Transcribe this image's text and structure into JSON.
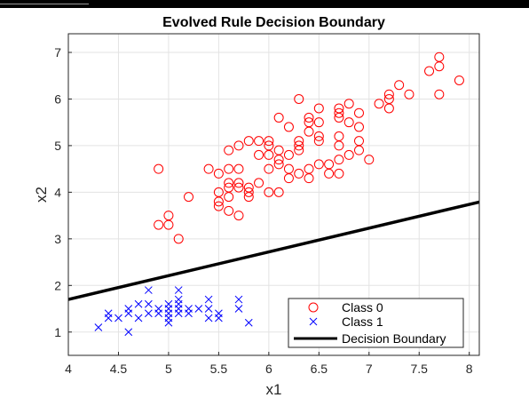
{
  "chart_data": {
    "type": "scatter",
    "title": "Evolved Rule Decision Boundary",
    "xlabel": "x1",
    "ylabel": "x2",
    "xlim": [
      4,
      8.1
    ],
    "ylim": [
      0.5,
      7.4
    ],
    "xticks": [
      "4",
      "4.5",
      "5",
      "5.5",
      "6",
      "6.5",
      "7",
      "7.5",
      "8"
    ],
    "yticks": [
      "1",
      "2",
      "3",
      "4",
      "5",
      "6",
      "7"
    ],
    "grid": true,
    "legend_position": "bottom-right",
    "series": [
      {
        "name": "Class 0",
        "marker": "circle",
        "color": "#ff0000",
        "points": [
          [
            4.9,
            4.5
          ],
          [
            4.9,
            3.3
          ],
          [
            5.0,
            3.5
          ],
          [
            5.0,
            3.3
          ],
          [
            5.1,
            3.0
          ],
          [
            5.2,
            3.9
          ],
          [
            5.4,
            4.5
          ],
          [
            5.5,
            4.4
          ],
          [
            5.5,
            4.0
          ],
          [
            5.5,
            3.8
          ],
          [
            5.5,
            3.7
          ],
          [
            5.6,
            4.9
          ],
          [
            5.6,
            4.5
          ],
          [
            5.6,
            4.2
          ],
          [
            5.6,
            4.1
          ],
          [
            5.6,
            3.9
          ],
          [
            5.6,
            3.6
          ],
          [
            5.7,
            5.0
          ],
          [
            5.7,
            4.5
          ],
          [
            5.7,
            4.2
          ],
          [
            5.7,
            4.1
          ],
          [
            5.7,
            3.5
          ],
          [
            5.8,
            5.1
          ],
          [
            5.8,
            4.1
          ],
          [
            5.8,
            4.0
          ],
          [
            5.8,
            3.9
          ],
          [
            5.9,
            5.1
          ],
          [
            5.9,
            4.8
          ],
          [
            5.9,
            4.2
          ],
          [
            6.0,
            5.1
          ],
          [
            6.0,
            5.0
          ],
          [
            6.0,
            4.8
          ],
          [
            6.0,
            4.5
          ],
          [
            6.0,
            4.0
          ],
          [
            6.1,
            5.6
          ],
          [
            6.1,
            4.9
          ],
          [
            6.1,
            4.7
          ],
          [
            6.1,
            4.6
          ],
          [
            6.1,
            4.0
          ],
          [
            6.2,
            5.4
          ],
          [
            6.2,
            4.8
          ],
          [
            6.2,
            4.5
          ],
          [
            6.2,
            4.3
          ],
          [
            6.3,
            6.0
          ],
          [
            6.3,
            5.1
          ],
          [
            6.3,
            5.0
          ],
          [
            6.3,
            4.9
          ],
          [
            6.3,
            4.4
          ],
          [
            6.4,
            5.6
          ],
          [
            6.4,
            5.5
          ],
          [
            6.4,
            5.3
          ],
          [
            6.4,
            4.5
          ],
          [
            6.4,
            4.3
          ],
          [
            6.5,
            5.8
          ],
          [
            6.5,
            5.5
          ],
          [
            6.5,
            5.2
          ],
          [
            6.5,
            5.1
          ],
          [
            6.5,
            4.6
          ],
          [
            6.6,
            4.6
          ],
          [
            6.6,
            4.4
          ],
          [
            6.7,
            5.8
          ],
          [
            6.7,
            5.7
          ],
          [
            6.7,
            5.6
          ],
          [
            6.7,
            5.2
          ],
          [
            6.7,
            5.0
          ],
          [
            6.7,
            4.7
          ],
          [
            6.7,
            4.4
          ],
          [
            6.8,
            5.9
          ],
          [
            6.8,
            5.5
          ],
          [
            6.8,
            4.8
          ],
          [
            6.9,
            5.7
          ],
          [
            6.9,
            5.4
          ],
          [
            6.9,
            5.1
          ],
          [
            6.9,
            4.9
          ],
          [
            7.0,
            4.7
          ],
          [
            7.1,
            5.9
          ],
          [
            7.2,
            6.1
          ],
          [
            7.2,
            6.0
          ],
          [
            7.2,
            5.8
          ],
          [
            7.3,
            6.3
          ],
          [
            7.4,
            6.1
          ],
          [
            7.6,
            6.6
          ],
          [
            7.7,
            6.9
          ],
          [
            7.7,
            6.7
          ],
          [
            7.7,
            6.1
          ],
          [
            7.9,
            6.4
          ]
        ]
      },
      {
        "name": "Class 1",
        "marker": "x",
        "color": "#0000ff",
        "points": [
          [
            4.3,
            1.1
          ],
          [
            4.4,
            1.4
          ],
          [
            4.4,
            1.3
          ],
          [
            4.5,
            1.3
          ],
          [
            4.6,
            1.5
          ],
          [
            4.6,
            1.4
          ],
          [
            4.6,
            1.0
          ],
          [
            4.7,
            1.6
          ],
          [
            4.7,
            1.3
          ],
          [
            4.8,
            1.9
          ],
          [
            4.8,
            1.6
          ],
          [
            4.8,
            1.4
          ],
          [
            4.9,
            1.5
          ],
          [
            4.9,
            1.4
          ],
          [
            5.0,
            1.6
          ],
          [
            5.0,
            1.5
          ],
          [
            5.0,
            1.4
          ],
          [
            5.0,
            1.3
          ],
          [
            5.0,
            1.2
          ],
          [
            5.1,
            1.9
          ],
          [
            5.1,
            1.7
          ],
          [
            5.1,
            1.6
          ],
          [
            5.1,
            1.5
          ],
          [
            5.1,
            1.4
          ],
          [
            5.2,
            1.5
          ],
          [
            5.2,
            1.4
          ],
          [
            5.3,
            1.5
          ],
          [
            5.4,
            1.7
          ],
          [
            5.4,
            1.5
          ],
          [
            5.4,
            1.3
          ],
          [
            5.5,
            1.4
          ],
          [
            5.5,
            1.3
          ],
          [
            5.7,
            1.7
          ],
          [
            5.7,
            1.5
          ],
          [
            5.8,
            1.2
          ]
        ]
      },
      {
        "name": "Decision Boundary",
        "marker": "line",
        "color": "#000000",
        "points": [
          [
            4.0,
            1.7
          ],
          [
            8.1,
            3.79
          ]
        ]
      }
    ]
  }
}
